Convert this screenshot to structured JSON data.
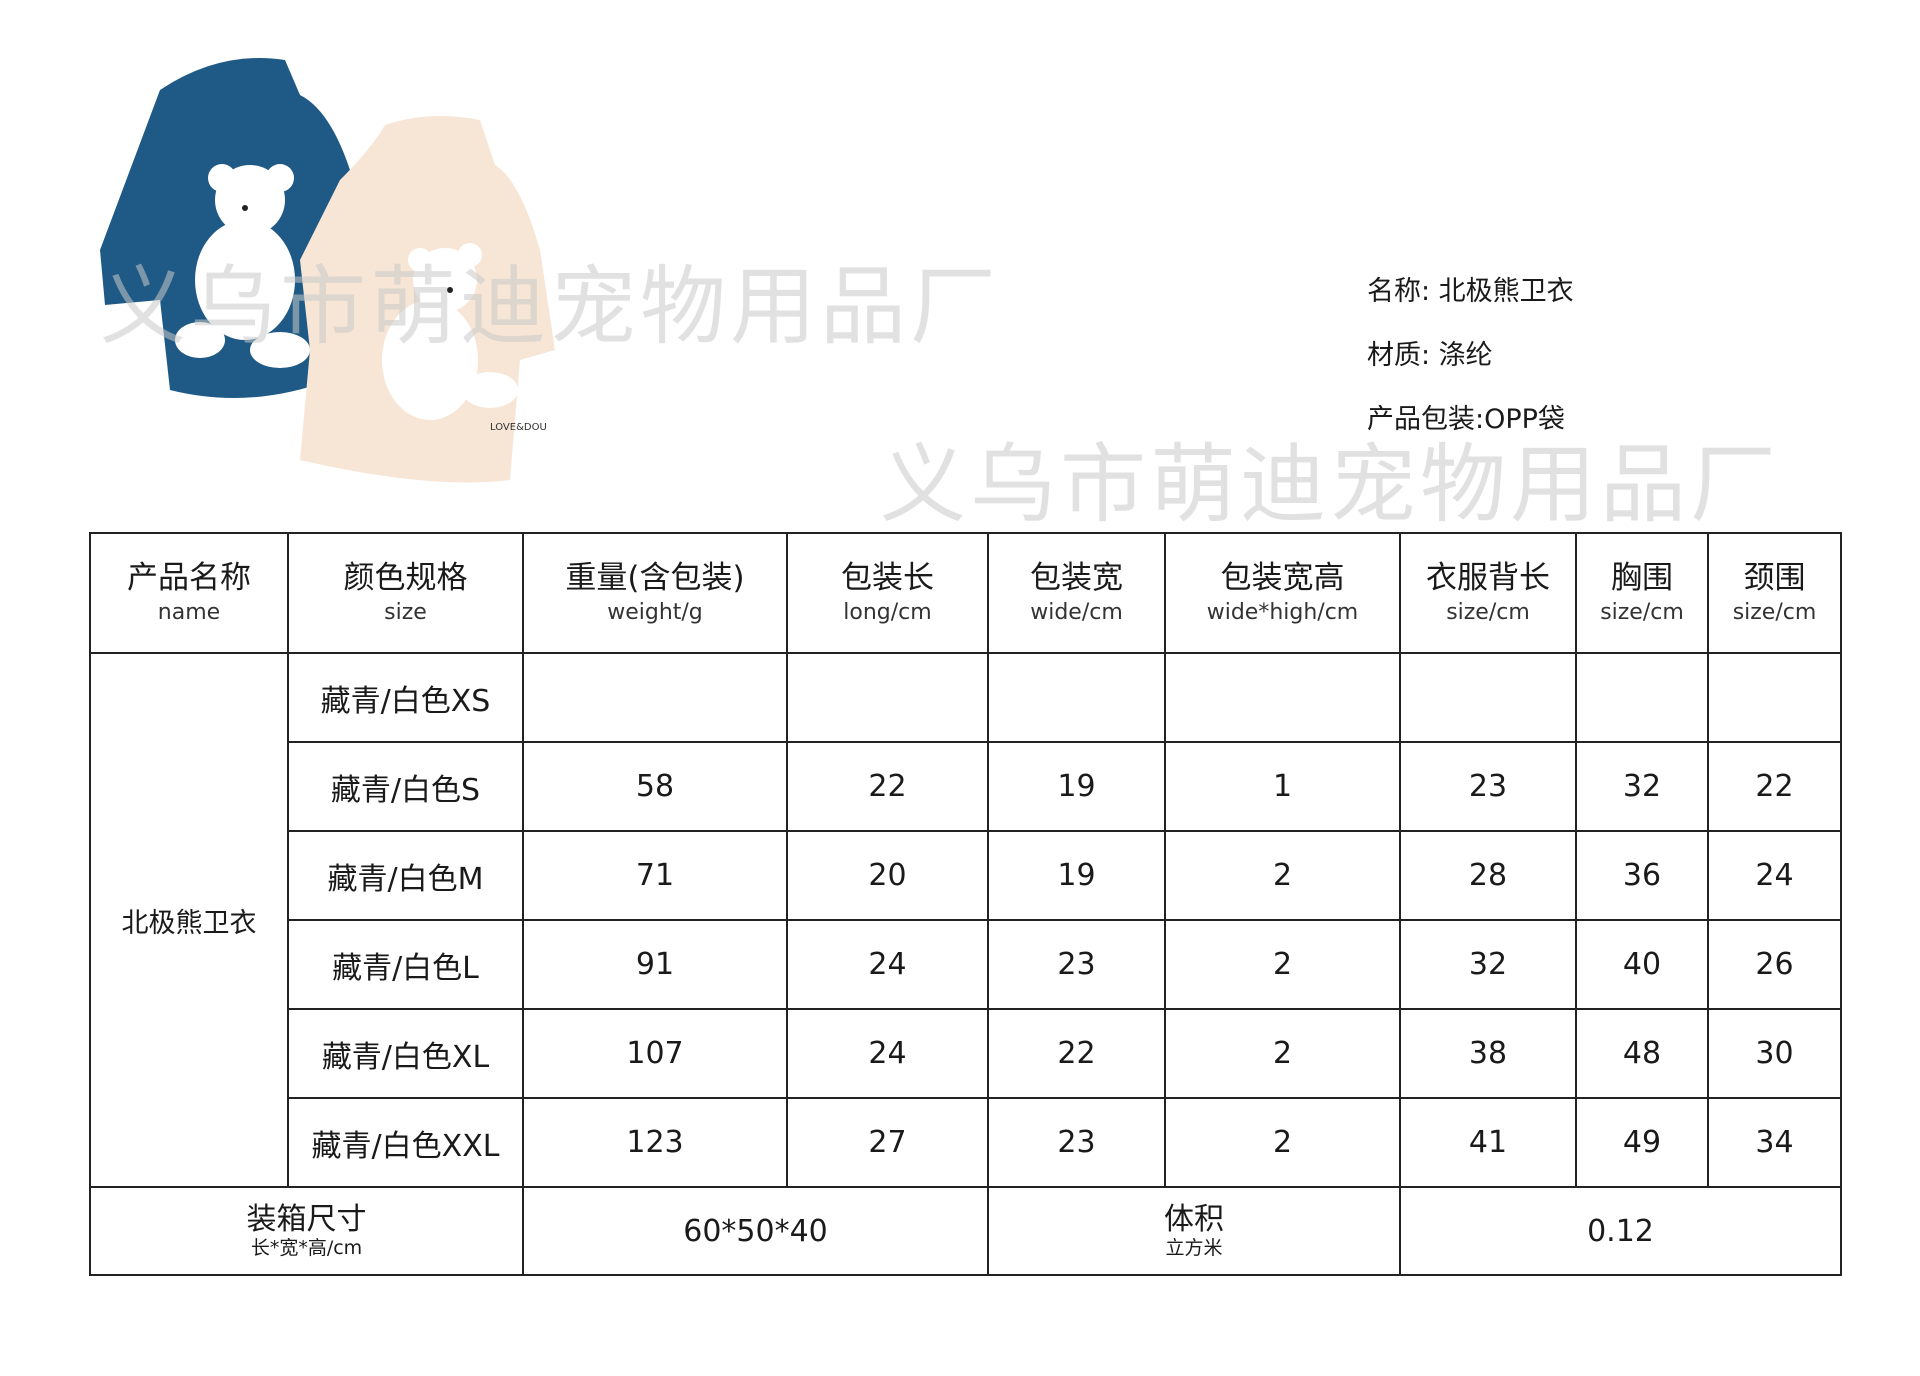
{
  "info": {
    "name": "名称: 北极熊卫衣",
    "material": "材质: 涤纶",
    "packaging": "产品包装:OPP袋"
  },
  "watermark": "义乌市萌迪宠物用品厂",
  "image": {
    "label": "LOVE&DOU",
    "colors": {
      "navy": "#1f5a86",
      "cream": "#f7e6d6",
      "bear": "#ffffff"
    }
  },
  "table": {
    "headers": [
      {
        "cn": "产品名称",
        "en": "name"
      },
      {
        "cn": "颜色规格",
        "en": "size"
      },
      {
        "cn": "重量(含包装)",
        "en": "weight/g"
      },
      {
        "cn": "包装长",
        "en": "long/cm"
      },
      {
        "cn": "包装宽",
        "en": "wide/cm"
      },
      {
        "cn": "包装宽高",
        "en": "wide*high/cm"
      },
      {
        "cn": "衣服背长",
        "en": "size/cm"
      },
      {
        "cn": "胸围",
        "en": "size/cm"
      },
      {
        "cn": "颈围",
        "en": "size/cm"
      }
    ],
    "product_name": "北极熊卫衣",
    "rows": [
      [
        "藏青/白色XS",
        "",
        "",
        "",
        "",
        "",
        "",
        ""
      ],
      [
        "藏青/白色S",
        "58",
        "22",
        "19",
        "1",
        "23",
        "32",
        "22"
      ],
      [
        "藏青/白色M",
        "71",
        "20",
        "19",
        "2",
        "28",
        "36",
        "24"
      ],
      [
        "藏青/白色L",
        "91",
        "24",
        "23",
        "2",
        "32",
        "40",
        "26"
      ],
      [
        "藏青/白色XL",
        "107",
        "24",
        "22",
        "2",
        "38",
        "48",
        "30"
      ],
      [
        "藏青/白色XXL",
        "123",
        "27",
        "23",
        "2",
        "41",
        "49",
        "34"
      ]
    ],
    "footer": {
      "carton_label": "装箱尺寸",
      "carton_unit": "长*宽*高/cm",
      "carton_value": "60*50*40",
      "volume_label": "体积",
      "volume_unit": "立方米",
      "volume_value": "0.12"
    }
  }
}
